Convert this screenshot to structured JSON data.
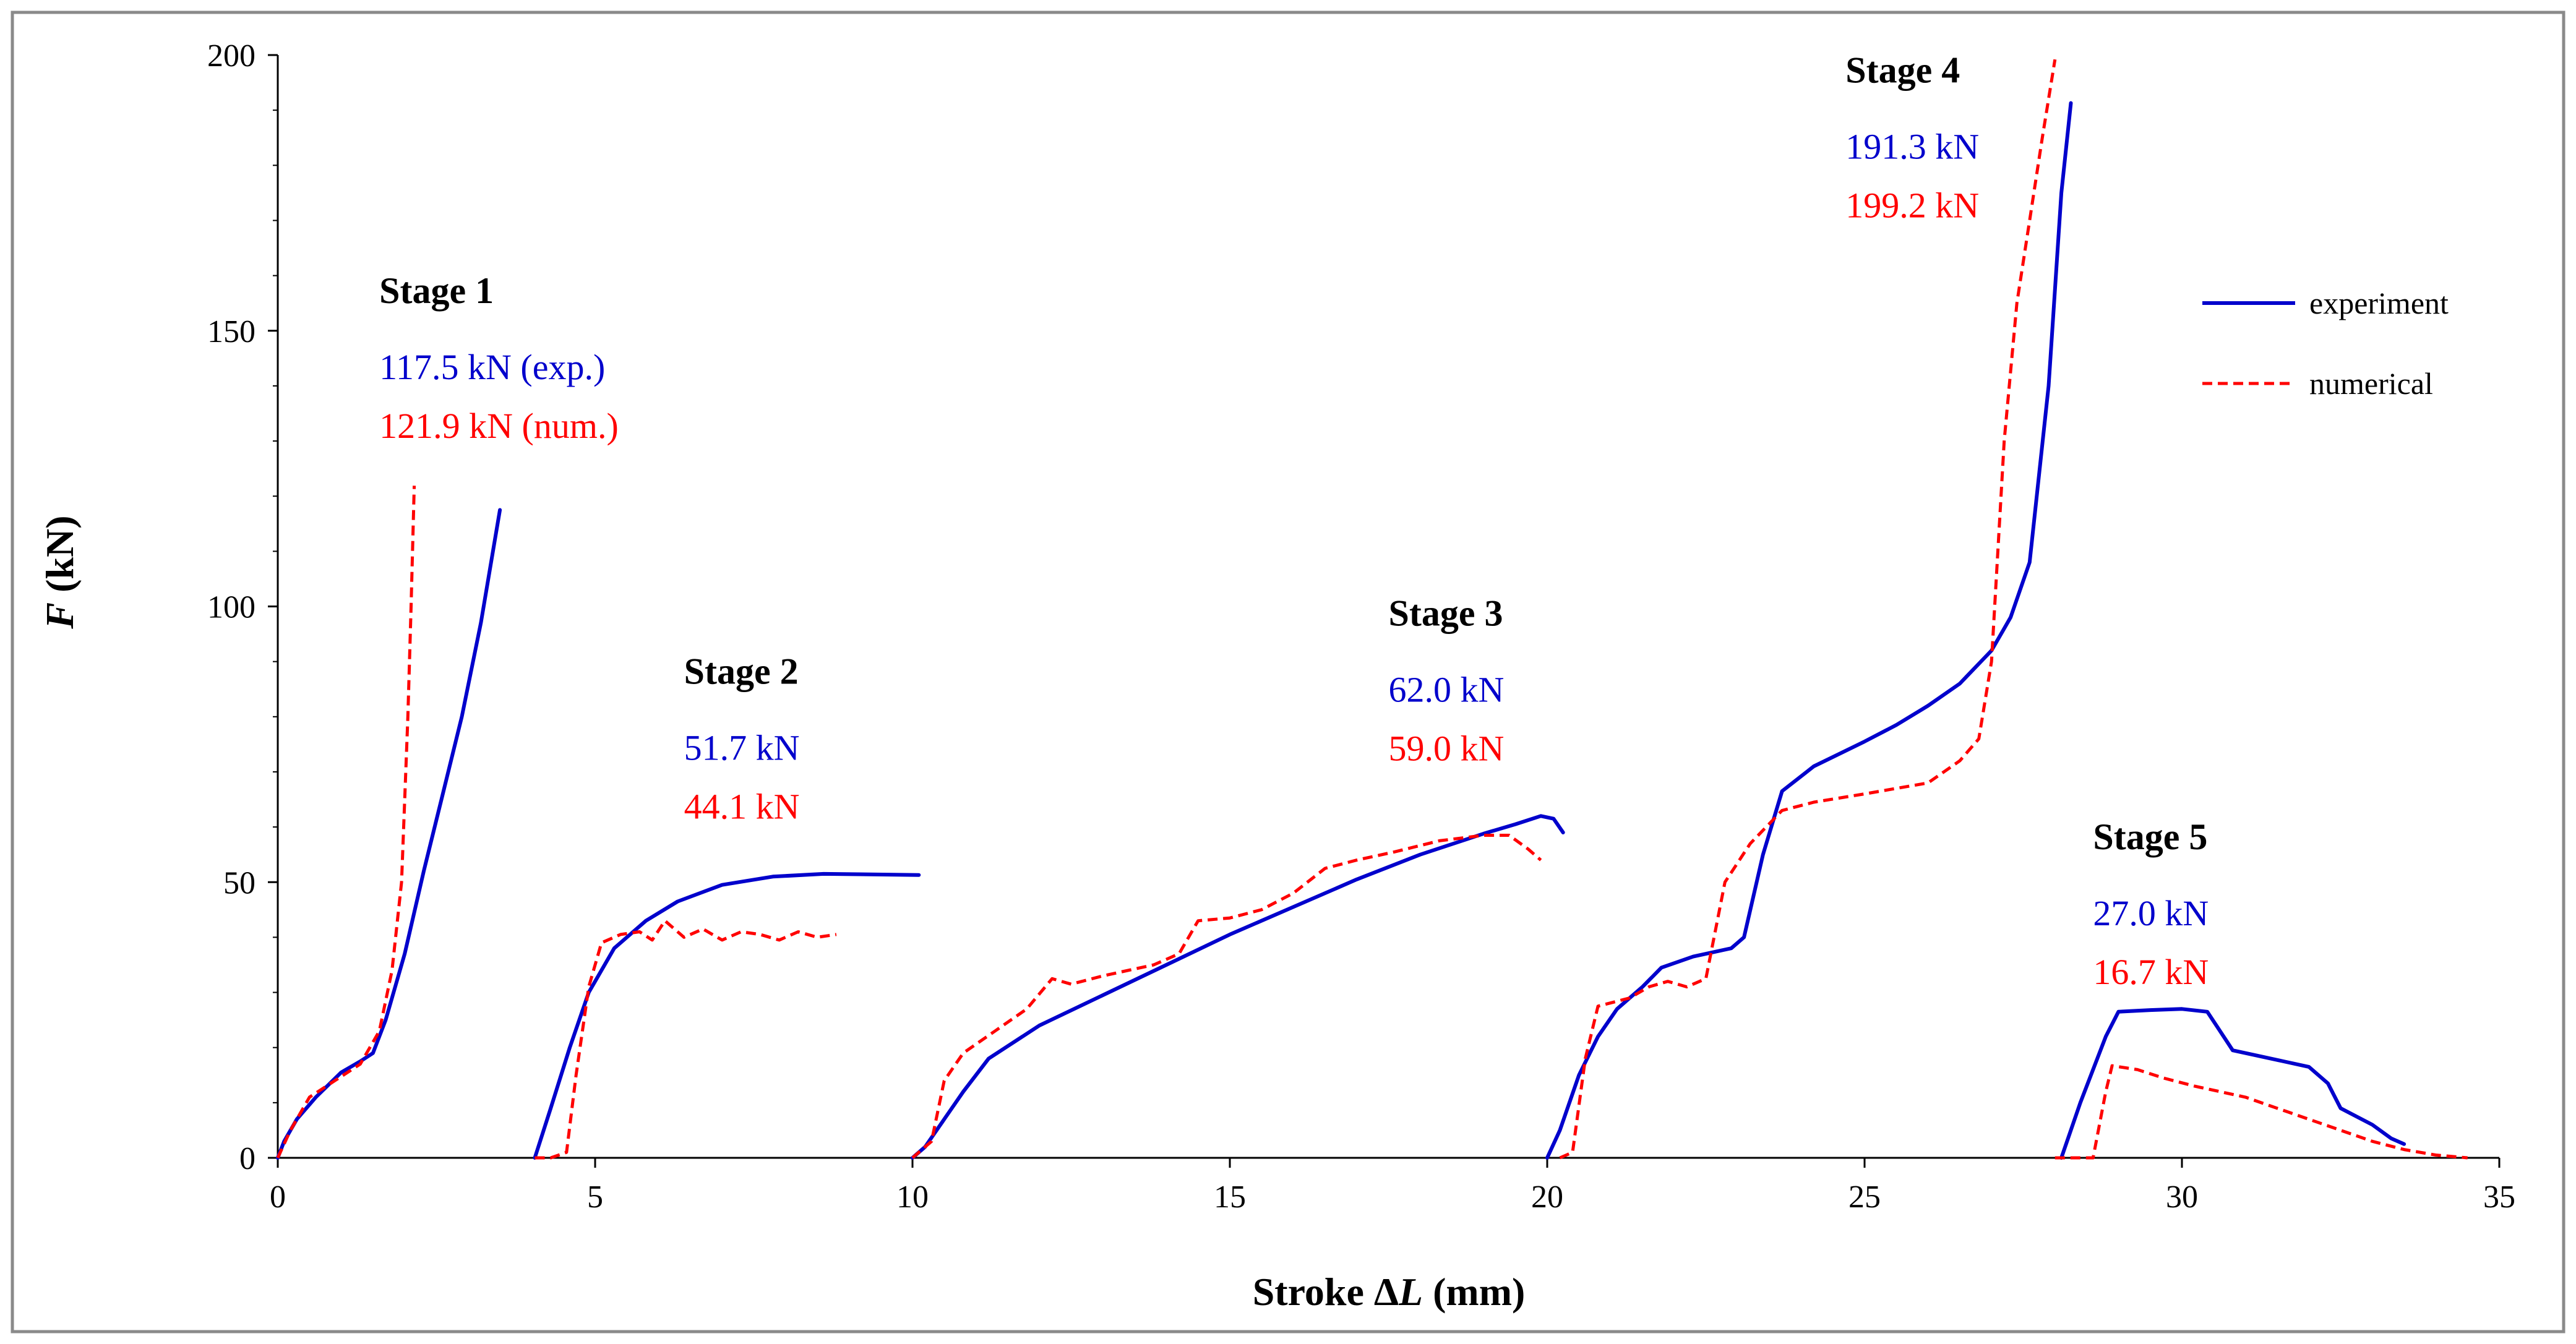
{
  "chart_data": {
    "type": "line",
    "title": "",
    "xlabel_prefix": "Stroke ",
    "xlabel_symbol": "Δ",
    "xlabel_var": "L",
    "xlabel_unit": " (mm)",
    "ylabel_var": "F",
    "ylabel_unit": " (kN)",
    "xlim": [
      0,
      35
    ],
    "ylim": [
      0,
      200
    ],
    "xticks": [
      0,
      5,
      10,
      15,
      20,
      25,
      30,
      35
    ],
    "yticks": [
      0,
      50,
      100,
      150,
      200
    ],
    "grid": false,
    "legend_position": "top-right",
    "colors": {
      "experiment": "#0000cc",
      "numerical": "#ff0000"
    },
    "series": [
      {
        "name": "experiment",
        "style": "solid",
        "segments": [
          [
            [
              0,
              0
            ],
            [
              0.1,
              3
            ],
            [
              0.3,
              7
            ],
            [
              0.6,
              11
            ],
            [
              1.0,
              15.5
            ],
            [
              1.3,
              17.5
            ],
            [
              1.5,
              19
            ],
            [
              1.7,
              25
            ],
            [
              2.0,
              37
            ],
            [
              2.3,
              52
            ],
            [
              2.6,
              66
            ],
            [
              2.9,
              80
            ],
            [
              3.2,
              97
            ],
            [
              3.5,
              117.5
            ]
          ],
          [
            [
              4.05,
              0
            ],
            [
              4.3,
              9
            ],
            [
              4.6,
              20
            ],
            [
              4.9,
              30
            ],
            [
              5.3,
              38
            ],
            [
              5.8,
              43
            ],
            [
              6.3,
              46.5
            ],
            [
              7.0,
              49.5
            ],
            [
              7.8,
              51
            ],
            [
              8.6,
              51.5
            ],
            [
              10.1,
              51.3
            ]
          ],
          [
            [
              10.0,
              0
            ],
            [
              10.2,
              2
            ],
            [
              10.5,
              7
            ],
            [
              10.8,
              12
            ],
            [
              11.2,
              18
            ],
            [
              12.0,
              24
            ],
            [
              13.0,
              29.5
            ],
            [
              14.0,
              35
            ],
            [
              15.0,
              40.5
            ],
            [
              16.0,
              45.5
            ],
            [
              17.0,
              50.5
            ],
            [
              18.0,
              55
            ],
            [
              19.0,
              58.8
            ],
            [
              19.5,
              60.5
            ],
            [
              19.9,
              62
            ],
            [
              20.1,
              61.5
            ],
            [
              20.25,
              59
            ]
          ],
          [
            [
              20.0,
              0
            ],
            [
              20.2,
              5
            ],
            [
              20.5,
              15
            ],
            [
              20.8,
              22
            ],
            [
              21.1,
              27
            ],
            [
              21.5,
              31
            ],
            [
              21.8,
              34.5
            ],
            [
              22.3,
              36.5
            ],
            [
              22.9,
              38
            ],
            [
              23.1,
              40
            ],
            [
              23.4,
              55
            ],
            [
              23.7,
              66.5
            ],
            [
              24.2,
              71
            ],
            [
              25.0,
              75.5
            ],
            [
              25.5,
              78.5
            ],
            [
              26.0,
              82
            ],
            [
              26.5,
              86
            ],
            [
              27.0,
              92
            ],
            [
              27.3,
              98
            ],
            [
              27.6,
              108
            ],
            [
              27.9,
              140
            ],
            [
              28.1,
              175
            ],
            [
              28.25,
              191.3
            ]
          ],
          [
            [
              28.1,
              0
            ],
            [
              28.4,
              10
            ],
            [
              28.8,
              22
            ],
            [
              29.0,
              26.5
            ],
            [
              29.5,
              26.8
            ],
            [
              30.0,
              27.0
            ],
            [
              30.4,
              26.5
            ],
            [
              30.6,
              23
            ],
            [
              30.8,
              19.5
            ],
            [
              31.2,
              18.5
            ],
            [
              31.6,
              17.5
            ],
            [
              32.0,
              16.5
            ],
            [
              32.3,
              13.5
            ],
            [
              32.5,
              9
            ],
            [
              33.0,
              6
            ],
            [
              33.3,
              3.5
            ],
            [
              33.5,
              2.5
            ]
          ]
        ]
      },
      {
        "name": "numerical",
        "style": "dashed",
        "segments": [
          [
            [
              0,
              0
            ],
            [
              0.2,
              5
            ],
            [
              0.5,
              11
            ],
            [
              0.9,
              14
            ],
            [
              1.3,
              17
            ],
            [
              1.6,
              23
            ],
            [
              1.8,
              34
            ],
            [
              1.95,
              50
            ],
            [
              2.05,
              80
            ],
            [
              2.1,
              100
            ],
            [
              2.15,
              121.9
            ]
          ],
          [
            [
              4.05,
              0
            ],
            [
              4.3,
              0
            ],
            [
              4.55,
              1
            ],
            [
              4.7,
              15
            ],
            [
              4.9,
              31
            ],
            [
              5.1,
              39
            ],
            [
              5.4,
              40.5
            ],
            [
              5.7,
              41
            ],
            [
              5.9,
              39.5
            ],
            [
              6.1,
              43
            ],
            [
              6.4,
              40
            ],
            [
              6.7,
              41.5
            ],
            [
              7.0,
              39.5
            ],
            [
              7.3,
              41
            ],
            [
              7.6,
              40.5
            ],
            [
              7.9,
              39.5
            ],
            [
              8.2,
              41
            ],
            [
              8.5,
              40
            ],
            [
              8.8,
              40.5
            ]
          ],
          [
            [
              10.0,
              0
            ],
            [
              10.3,
              3
            ],
            [
              10.5,
              14
            ],
            [
              10.8,
              19
            ],
            [
              11.3,
              23
            ],
            [
              11.8,
              27
            ],
            [
              12.2,
              32.5
            ],
            [
              12.5,
              31.5
            ],
            [
              13.0,
              33
            ],
            [
              13.8,
              35
            ],
            [
              14.2,
              37
            ],
            [
              14.5,
              43
            ],
            [
              15.0,
              43.5
            ],
            [
              15.5,
              45
            ],
            [
              16.0,
              48
            ],
            [
              16.5,
              52.5
            ],
            [
              17.0,
              54
            ],
            [
              17.6,
              55.5
            ],
            [
              18.3,
              57.5
            ],
            [
              19.0,
              58.5
            ],
            [
              19.4,
              58.5
            ],
            [
              19.7,
              56
            ],
            [
              19.9,
              54
            ]
          ],
          [
            [
              20.2,
              0
            ],
            [
              20.4,
              1
            ],
            [
              20.6,
              18
            ],
            [
              20.8,
              27.5
            ],
            [
              21.3,
              29
            ],
            [
              21.6,
              31
            ],
            [
              21.9,
              32
            ],
            [
              22.2,
              31
            ],
            [
              22.5,
              32.5
            ],
            [
              22.8,
              50
            ],
            [
              23.2,
              57
            ],
            [
              23.7,
              63
            ],
            [
              24.2,
              64.5
            ],
            [
              25.0,
              66
            ],
            [
              25.5,
              67
            ],
            [
              26.0,
              68
            ],
            [
              26.5,
              72
            ],
            [
              26.8,
              76
            ],
            [
              27.0,
              90
            ],
            [
              27.2,
              130
            ],
            [
              27.4,
              155
            ],
            [
              27.6,
              170
            ],
            [
              27.8,
              185
            ],
            [
              28.0,
              199.2
            ]
          ],
          [
            [
              28.0,
              0
            ],
            [
              28.6,
              0
            ],
            [
              28.8,
              12
            ],
            [
              28.9,
              16.7
            ],
            [
              29.3,
              16
            ],
            [
              29.7,
              14.5
            ],
            [
              30.2,
              13
            ],
            [
              30.6,
              12
            ],
            [
              31.0,
              11
            ],
            [
              31.5,
              9
            ],
            [
              32.0,
              7
            ],
            [
              32.5,
              5
            ],
            [
              33.0,
              3
            ],
            [
              33.5,
              1.5
            ],
            [
              34.0,
              0.5
            ],
            [
              34.5,
              0
            ]
          ]
        ]
      }
    ],
    "stages": [
      {
        "title": "Stage 1",
        "exp": "117.5 kN (exp.)",
        "num": "121.9 kN (num.)",
        "x": 1.6,
        "y": 155
      },
      {
        "title": "Stage 2",
        "exp": "51.7 kN",
        "num": "44.1 kN",
        "x": 6.4,
        "y": 86
      },
      {
        "title": "Stage 3",
        "exp": "62.0 kN",
        "num": "59.0 kN",
        "x": 17.5,
        "y": 96.5
      },
      {
        "title": "Stage 4",
        "exp": "191.3 kN",
        "num": "199.2 kN",
        "x": 24.7,
        "y": 195
      },
      {
        "title": "Stage 5",
        "exp": "27.0 kN",
        "num": "16.7 kN",
        "x": 28.6,
        "y": 56
      }
    ]
  }
}
